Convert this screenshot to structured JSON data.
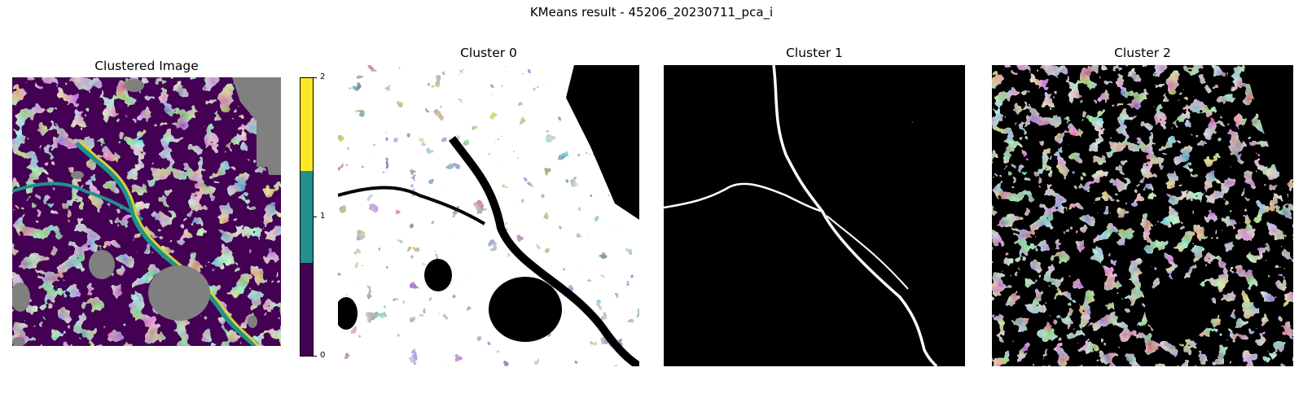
{
  "suptitle": "KMeans result - 45206_20230711_pca_i",
  "chart_data": [
    {
      "type": "heatmap",
      "title": "Clustered Image",
      "colormap": "viridis",
      "cluster_colors": {
        "0": "#440154",
        "1": "#21918c",
        "2": "#fde725",
        "masked": "#808080"
      },
      "colorbar": {
        "ticks": [
          "0",
          "1",
          "2"
        ],
        "range": [
          0,
          2
        ]
      },
      "axis": "off"
    },
    {
      "type": "heatmap",
      "title": "Cluster 0",
      "colormap": "binary mask (white = member, black = non-member)",
      "axis": "off"
    },
    {
      "type": "heatmap",
      "title": "Cluster 1",
      "colormap": "binary mask (white = member, black = non-member)",
      "axis": "off"
    },
    {
      "type": "heatmap",
      "title": "Cluster 2",
      "colormap": "binary mask (white = member, black = non-member)",
      "axis": "off"
    }
  ]
}
